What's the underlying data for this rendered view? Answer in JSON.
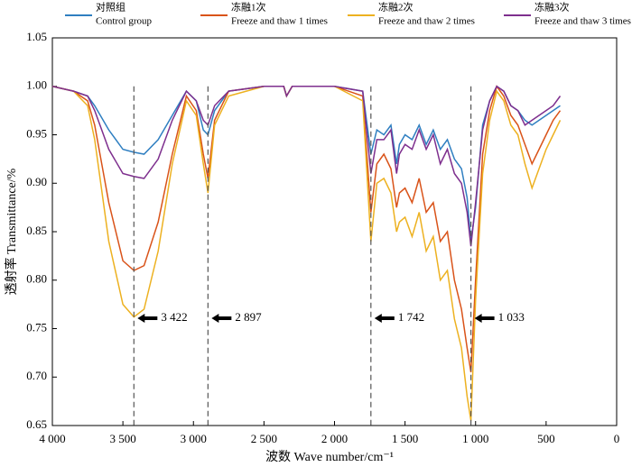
{
  "chart_data": {
    "type": "line",
    "xlabel": "波数 Wave number/cm⁻¹",
    "ylabel": "透射率 Transmittance/%",
    "xlim": [
      4000,
      0
    ],
    "ylim": [
      0.65,
      1.05
    ],
    "xticks": [
      {
        "value": 4000,
        "label": "4 000"
      },
      {
        "value": 3500,
        "label": "3 500"
      },
      {
        "value": 3000,
        "label": "3 000"
      },
      {
        "value": 2500,
        "label": "2 500"
      },
      {
        "value": 2000,
        "label": "2 000"
      },
      {
        "value": 1500,
        "label": "1 500"
      },
      {
        "value": 1000,
        "label": "1 000"
      },
      500,
      0
    ],
    "yticks": [
      0.65,
      {
        "value": 0.7,
        "label": "0.70"
      },
      0.75,
      {
        "value": 0.8,
        "label": "0.80"
      },
      0.85,
      {
        "value": 0.9,
        "label": "0.90"
      },
      0.95,
      {
        "value": 1.0,
        "label": "1.00"
      },
      1.05
    ],
    "annotations": [
      {
        "x": 3422,
        "label": "3 422"
      },
      {
        "x": 2897,
        "label": "2 897"
      },
      {
        "x": 1742,
        "label": "1 742"
      },
      {
        "x": 1033,
        "label": "1 033"
      }
    ],
    "x": [
      4000,
      3850,
      3750,
      3700,
      3600,
      3500,
      3422,
      3350,
      3250,
      3150,
      3050,
      2980,
      2930,
      2897,
      2850,
      2750,
      2500,
      2360,
      2340,
      2300,
      2000,
      1800,
      1742,
      1700,
      1650,
      1600,
      1560,
      1540,
      1500,
      1450,
      1400,
      1350,
      1300,
      1250,
      1200,
      1150,
      1100,
      1060,
      1033,
      1000,
      950,
      900,
      850,
      800,
      750,
      700,
      650,
      600,
      550,
      500,
      450,
      400
    ],
    "series": [
      {
        "name": [
          "对照组",
          "Control group"
        ],
        "color": "#2f7fc1",
        "values": [
          1.0,
          0.995,
          0.99,
          0.98,
          0.955,
          0.935,
          0.932,
          0.93,
          0.945,
          0.97,
          0.995,
          0.985,
          0.955,
          0.95,
          0.975,
          0.995,
          1.0,
          1.0,
          0.99,
          1.0,
          1.0,
          0.995,
          0.93,
          0.955,
          0.95,
          0.96,
          0.92,
          0.94,
          0.95,
          0.945,
          0.96,
          0.94,
          0.955,
          0.935,
          0.945,
          0.925,
          0.915,
          0.885,
          0.84,
          0.875,
          0.96,
          0.985,
          1.0,
          0.995,
          0.98,
          0.975,
          0.965,
          0.96,
          0.965,
          0.97,
          0.975,
          0.98
        ]
      },
      {
        "name": [
          "冻融1次",
          "Freeze and thaw 1 times"
        ],
        "color": "#d95319",
        "values": [
          1.0,
          0.995,
          0.985,
          0.96,
          0.88,
          0.82,
          0.81,
          0.815,
          0.86,
          0.93,
          0.99,
          0.975,
          0.93,
          0.905,
          0.965,
          0.995,
          1.0,
          1.0,
          0.99,
          1.0,
          1.0,
          0.99,
          0.87,
          0.92,
          0.93,
          0.915,
          0.875,
          0.89,
          0.895,
          0.88,
          0.905,
          0.87,
          0.88,
          0.84,
          0.85,
          0.8,
          0.77,
          0.73,
          0.705,
          0.8,
          0.93,
          0.975,
          1.0,
          0.99,
          0.97,
          0.96,
          0.94,
          0.92,
          0.935,
          0.95,
          0.965,
          0.975
        ]
      },
      {
        "name": [
          "冻融2次",
          "Freeze and thaw 2 times"
        ],
        "color": "#edb120",
        "values": [
          1.0,
          0.995,
          0.98,
          0.945,
          0.84,
          0.775,
          0.762,
          0.77,
          0.83,
          0.92,
          0.985,
          0.97,
          0.92,
          0.89,
          0.96,
          0.99,
          1.0,
          1.0,
          0.99,
          1.0,
          1.0,
          0.985,
          0.84,
          0.9,
          0.905,
          0.89,
          0.85,
          0.86,
          0.865,
          0.845,
          0.87,
          0.83,
          0.845,
          0.8,
          0.81,
          0.76,
          0.73,
          0.68,
          0.655,
          0.78,
          0.91,
          0.965,
          0.995,
          0.985,
          0.96,
          0.95,
          0.92,
          0.895,
          0.915,
          0.935,
          0.95,
          0.965
        ]
      },
      {
        "name": [
          "冻融3次",
          "Freeze and thaw 3 times"
        ],
        "color": "#7e2f8e",
        "values": [
          1.0,
          0.995,
          0.99,
          0.975,
          0.935,
          0.91,
          0.907,
          0.905,
          0.925,
          0.965,
          0.995,
          0.985,
          0.965,
          0.96,
          0.98,
          0.995,
          1.0,
          1.0,
          0.99,
          1.0,
          1.0,
          0.995,
          0.91,
          0.945,
          0.945,
          0.955,
          0.91,
          0.93,
          0.94,
          0.935,
          0.955,
          0.935,
          0.95,
          0.92,
          0.935,
          0.91,
          0.9,
          0.87,
          0.835,
          0.88,
          0.955,
          0.985,
          1.0,
          0.995,
          0.98,
          0.975,
          0.96,
          0.965,
          0.97,
          0.975,
          0.98,
          0.99
        ]
      }
    ]
  }
}
